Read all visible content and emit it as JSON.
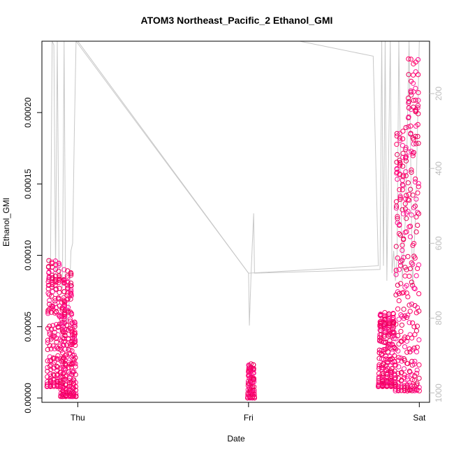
{
  "chart_data": {
    "type": "scatter",
    "title": "ATOM3 Northeast_Pacific_2 Ethanol_GMI",
    "xlabel": "Date",
    "ylabel": "Ethanol_GMI",
    "x_ticks": [
      "Thu",
      "Fri",
      "Sat"
    ],
    "x_tick_days": [
      0,
      1,
      2
    ],
    "xlim_days": [
      -0.21,
      2.06
    ],
    "ylim": [
      -3e-06,
      0.00025
    ],
    "y_ticks": [
      {
        "value": 0.0,
        "label": "0.00000"
      },
      {
        "value": 5e-05,
        "label": "0.00005"
      },
      {
        "value": 0.0001,
        "label": "0.00010"
      },
      {
        "value": 0.00015,
        "label": "0.00015"
      },
      {
        "value": 0.0002,
        "label": "0.00020"
      }
    ],
    "right_axis": {
      "description": "secondary axis (pressure), reversed",
      "ticks": [
        200,
        400,
        600,
        800,
        1000
      ],
      "lim": [
        1025,
        60
      ],
      "color": "#bdbdbd"
    },
    "point_colors": [
      "#ff1493",
      "#ff0066",
      "#e8005a"
    ],
    "line_color": "#c8c8c8",
    "series": [
      {
        "kind": "points",
        "segments": [
          {
            "day_start": -0.18,
            "day_end": -0.1,
            "cycles": 4,
            "low": 8e-06,
            "high": 9.7e-05
          },
          {
            "day_start": -0.1,
            "day_end": -0.07,
            "cycles": 2,
            "low": 1e-06,
            "high": 6.8e-05
          },
          {
            "day_start": -0.09,
            "day_end": -0.03,
            "cycles": 3,
            "low": 1e-06,
            "high": 9e-05
          },
          {
            "day_start": -0.04,
            "day_end": -0.01,
            "cycles": 2,
            "low": 1e-06,
            "high": 5.5e-05
          },
          {
            "day_start": 0.995,
            "day_end": 1.035,
            "cycles": 3,
            "low": 0.0,
            "high": 2.4e-05
          },
          {
            "day_start": 1.76,
            "day_end": 1.86,
            "cycles": 4,
            "low": 8e-06,
            "high": 6e-05
          },
          {
            "day_start": 1.86,
            "day_end": 1.93,
            "cycles": 4,
            "low": 5e-06,
            "high": 0.00019
          },
          {
            "day_start": 1.93,
            "day_end": 2.0,
            "cycles": 5,
            "low": 5e-06,
            "high": 0.00024
          }
        ]
      },
      {
        "kind": "pressure-line",
        "points": [
          [
            -0.17,
            640
          ],
          [
            -0.16,
            680
          ],
          [
            -0.15,
            60
          ],
          [
            -0.14,
            70
          ],
          [
            -0.13,
            680
          ],
          [
            -0.12,
            60
          ],
          [
            -0.11,
            660
          ],
          [
            -0.1,
            700
          ],
          [
            -0.09,
            720
          ],
          [
            -0.08,
            60
          ],
          [
            -0.07,
            820
          ],
          [
            -0.06,
            800
          ],
          [
            -0.05,
            760
          ],
          [
            -0.04,
            620
          ],
          [
            -0.03,
            600
          ],
          [
            -0.02,
            300
          ],
          [
            -0.01,
            60
          ],
          [
            1.0,
            680
          ],
          [
            1.005,
            820
          ],
          [
            1.015,
            680
          ],
          [
            1.03,
            520
          ],
          [
            1.035,
            680
          ],
          [
            1.77,
            670
          ],
          [
            1.78,
            60
          ],
          [
            1.79,
            660
          ],
          [
            1.8,
            60
          ],
          [
            1.81,
            700
          ],
          [
            1.83,
            60
          ],
          [
            1.84,
            680
          ],
          [
            1.85,
            620
          ],
          [
            1.86,
            700
          ],
          [
            1.87,
            640
          ],
          [
            1.88,
            60
          ],
          [
            1.9,
            700
          ],
          [
            1.92,
            520
          ],
          [
            1.94,
            60
          ],
          [
            1.96,
            720
          ],
          [
            1.98,
            500
          ],
          [
            2.0,
            60
          ]
        ],
        "connector_points": [
          [
            0.0,
            60
          ],
          [
            1.0,
            680
          ],
          [
            1.76,
            660
          ],
          [
            1.73,
            100
          ],
          [
            1.3,
            60
          ]
        ]
      }
    ]
  }
}
